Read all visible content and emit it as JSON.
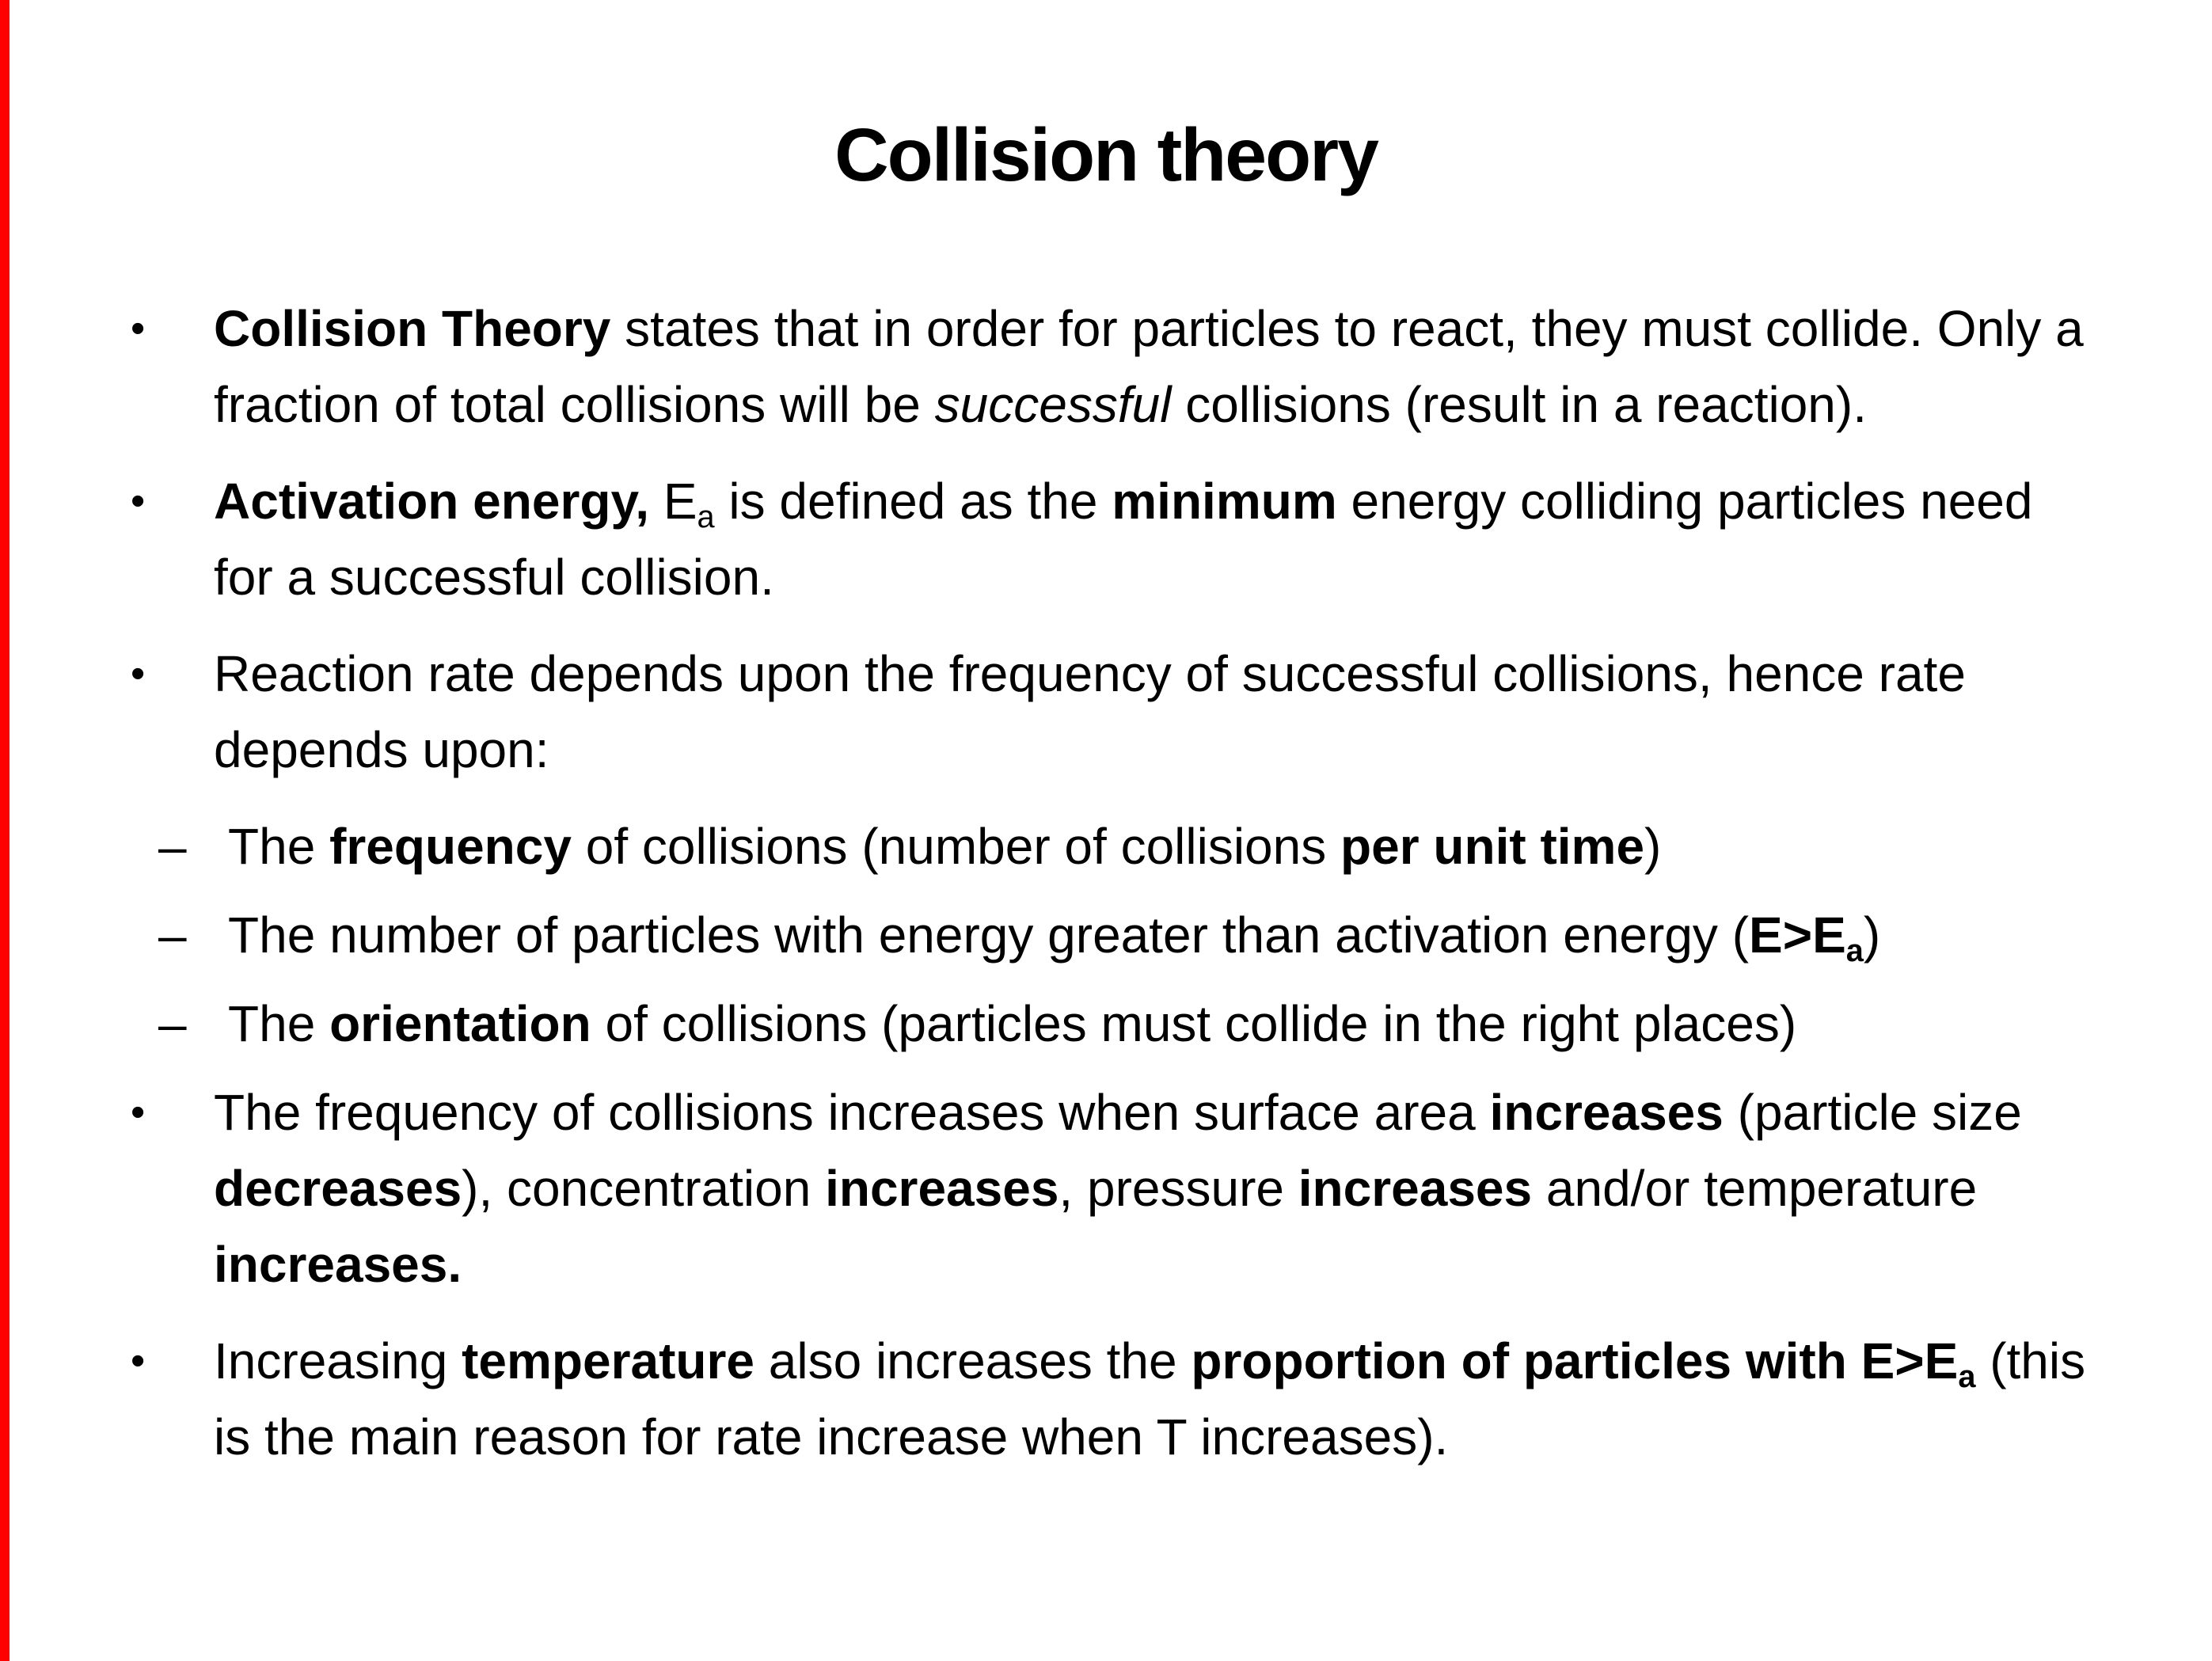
{
  "slide": {
    "title": "Collision theory"
  },
  "colors": {
    "left_stripe": "#ff0000",
    "background": "#ffffff",
    "text": "#000000"
  },
  "bullets": [
    {
      "level": 1,
      "marker": "•",
      "runs": [
        {
          "t": "Collision Theory",
          "b": true
        },
        {
          "t": " states that in order for particles to react, they must collide. Only a fraction of total collisions will be "
        },
        {
          "t": "successful",
          "i": true
        },
        {
          "t": " collisions (result in a reaction)."
        }
      ]
    },
    {
      "level": 1,
      "marker": "•",
      "runs": [
        {
          "t": "Activation energy,",
          "b": true
        },
        {
          "t": " E"
        },
        {
          "t": "a",
          "s": true
        },
        {
          "t": " is defined as the "
        },
        {
          "t": "minimum",
          "b": true
        },
        {
          "t": " energy colliding particles need for a successful collision."
        }
      ]
    },
    {
      "level": 1,
      "marker": "•",
      "runs": [
        {
          "t": "Reaction rate depends upon the frequency of successful collisions, hence rate depends upon:"
        }
      ]
    },
    {
      "level": 2,
      "marker": "–",
      "runs": [
        {
          "t": "The "
        },
        {
          "t": "frequency",
          "b": true
        },
        {
          "t": " of collisions (number of collisions "
        },
        {
          "t": "per unit time",
          "b": true
        },
        {
          "t": ")"
        }
      ]
    },
    {
      "level": 2,
      "marker": "–",
      "runs": [
        {
          "t": "The number of particles with energy greater than activation energy ("
        },
        {
          "t": "E>E",
          "b": true
        },
        {
          "t": "a",
          "b": true,
          "s": true
        },
        {
          "t": ")"
        }
      ]
    },
    {
      "level": 2,
      "marker": "–",
      "runs": [
        {
          "t": "The "
        },
        {
          "t": "orientation",
          "b": true
        },
        {
          "t": " of collisions (particles must collide in the right places)"
        }
      ]
    },
    {
      "level": 1,
      "marker": "•",
      "runs": [
        {
          "t": "The frequency of collisions increases when surface area "
        },
        {
          "t": "increases",
          "b": true
        },
        {
          "t": " (particle size "
        },
        {
          "t": "decreases",
          "b": true
        },
        {
          "t": "), concentration "
        },
        {
          "t": "increases",
          "b": true
        },
        {
          "t": ", pressure "
        },
        {
          "t": "increases",
          "b": true
        },
        {
          "t": " and/or temperature "
        },
        {
          "t": "increases.",
          "b": true
        }
      ]
    },
    {
      "level": 1,
      "marker": "•",
      "runs": [
        {
          "t": "Increasing "
        },
        {
          "t": "temperature",
          "b": true
        },
        {
          "t": " also increases the "
        },
        {
          "t": "proportion of particles with E>E",
          "b": true
        },
        {
          "t": "a",
          "b": true,
          "s": true
        },
        {
          "t": " (this is the main reason for rate increase when T increases)."
        }
      ]
    }
  ]
}
